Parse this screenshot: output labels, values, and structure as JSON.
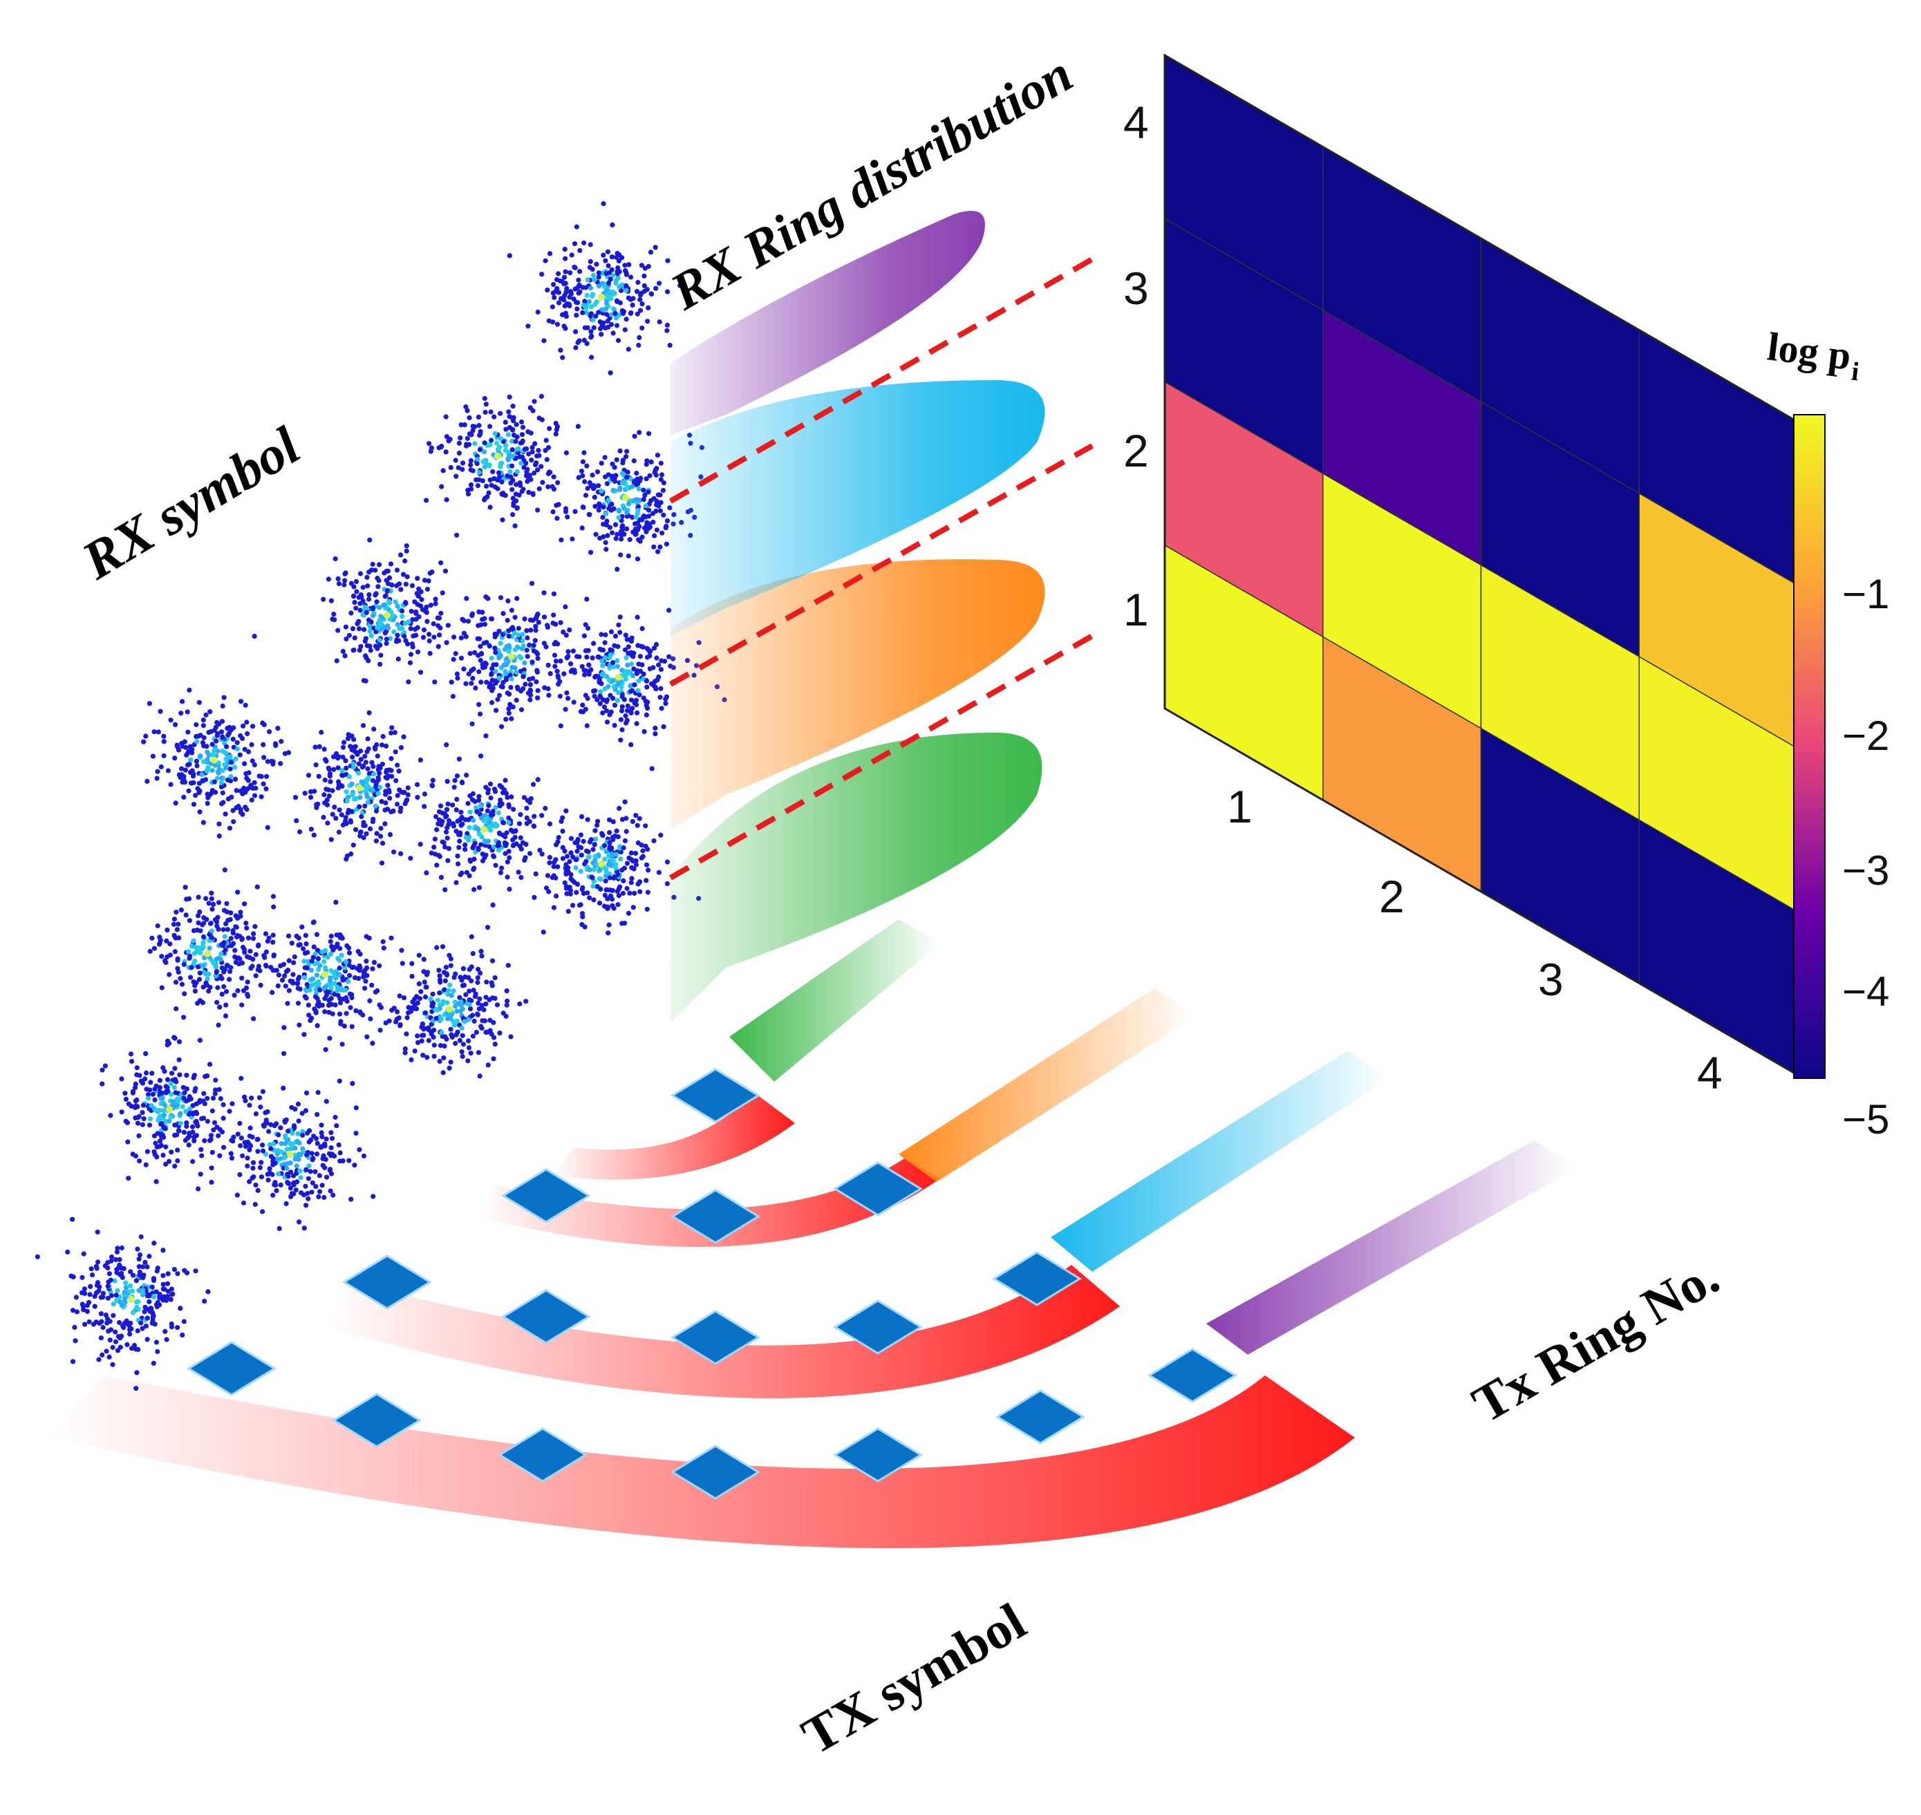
{
  "labels": {
    "rx_symbol": "RX symbol",
    "rx_ring_distribution": "RX Ring distribution",
    "tx_symbol": "TX symbol",
    "tx_ring_no": "Tx Ring No.",
    "colorbar_title_base": "log p",
    "colorbar_title_sub": "i"
  },
  "rx_ring_ticks": [
    "4",
    "3",
    "2",
    "1"
  ],
  "tx_ring_ticks": [
    "1",
    "2",
    "3",
    "4"
  ],
  "colorbar": {
    "ticks": [
      "-1",
      "-2",
      "-3",
      "-4",
      "-5"
    ],
    "range": [
      -5,
      0
    ]
  },
  "ring_colors": [
    "#3cb84a",
    "#ff8a1c",
    "#18b8ee",
    "#8a3fb0"
  ],
  "colors": {
    "tx_ring_fill": "#ff1a1a",
    "tx_symbol_fill": "#0a72c6",
    "rx_symbol_fill": "#1a1ad6",
    "threshold_line": "#e81c1c"
  },
  "chart_data": {
    "type": "heatmap",
    "title": "",
    "xlabel": "Tx Ring No.",
    "ylabel": "RX Ring distribution",
    "x": [
      "1",
      "2",
      "3",
      "4"
    ],
    "y": [
      "1",
      "2",
      "3",
      "4"
    ],
    "colorbar_label": "log pi",
    "zlim": [
      -5,
      0
    ],
    "values": [
      [
        -0.05,
        -1.4,
        -5,
        -5
      ],
      [
        -2.3,
        -0.05,
        -0.1,
        -0.1
      ],
      [
        -5,
        -4.2,
        -5,
        -0.8
      ],
      [
        -5,
        -5,
        -5,
        -5
      ]
    ]
  }
}
